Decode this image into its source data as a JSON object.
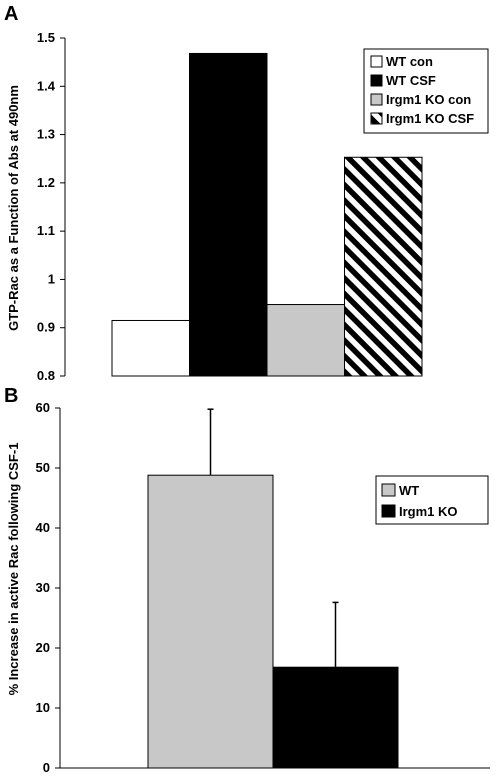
{
  "chart_data": [
    {
      "panel": "A",
      "type": "bar",
      "ylabel": "GTP-Rac as a Function of Abs at 490nm",
      "ylim": [
        0.8,
        1.5
      ],
      "yticks": [
        "0.8",
        "0.9",
        "1",
        "1.1",
        "1.2",
        "1.3",
        "1.4",
        "1.5"
      ],
      "series": [
        {
          "name": "WT con",
          "value": 0.915,
          "fill": "#ffffff",
          "pattern": "none"
        },
        {
          "name": "WT CSF",
          "value": 1.468,
          "fill": "#000000",
          "pattern": "none"
        },
        {
          "name": "Irgm1 KO con",
          "value": 0.948,
          "fill": "#c8c8c8",
          "pattern": "none"
        },
        {
          "name": "Irgm1 KO CSF",
          "value": 1.253,
          "fill": "#ffffff",
          "pattern": "diagonal-stripes"
        }
      ],
      "legend_position": "top-right",
      "grid": false
    },
    {
      "panel": "B",
      "type": "bar",
      "ylabel": "% Increase in active Rac following CSF-1",
      "ylim": [
        0,
        60
      ],
      "yticks": [
        "0",
        "10",
        "20",
        "30",
        "40",
        "50",
        "60"
      ],
      "series": [
        {
          "name": "WT",
          "value": 48.8,
          "error": 11.0,
          "fill": "#c8c8c8"
        },
        {
          "name": "Irgm1 KO",
          "value": 16.8,
          "error": 10.8,
          "fill": "#000000"
        }
      ],
      "legend_position": "top-right",
      "grid": false
    }
  ]
}
